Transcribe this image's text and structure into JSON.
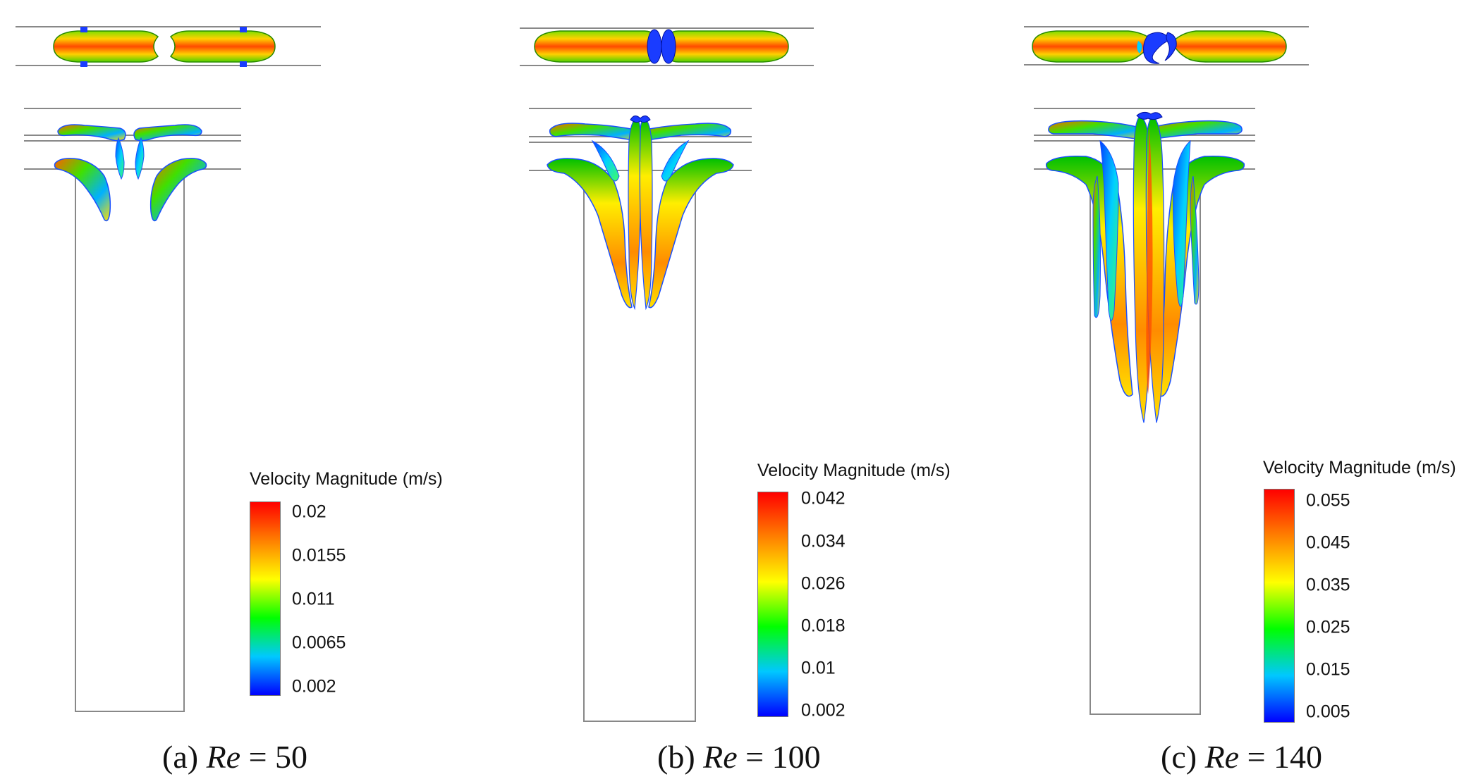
{
  "figure": {
    "legend_title": "Velocity Magnitude (m/s)",
    "colormap": [
      "#0000ff",
      "#00c8ff",
      "#00ff00",
      "#ffff00",
      "#ff8000",
      "#ff0000"
    ],
    "frame_color": "#888888",
    "panels": [
      {
        "label_prefix": "(a)",
        "re_symbol": "Re",
        "re_value": "= 50",
        "ticks": [
          "0.02",
          "0.0155",
          "0.011",
          "0.0065",
          "0.002"
        ]
      },
      {
        "label_prefix": "(b)",
        "re_symbol": "Re",
        "re_value": "= 100",
        "ticks": [
          "0.042",
          "0.034",
          "0.026",
          "0.018",
          "0.01",
          "0.002"
        ]
      },
      {
        "label_prefix": "(c)",
        "re_symbol": "Re",
        "re_value": "= 140",
        "ticks": [
          "0.055",
          "0.045",
          "0.035",
          "0.025",
          "0.015",
          "0.005"
        ]
      }
    ]
  }
}
